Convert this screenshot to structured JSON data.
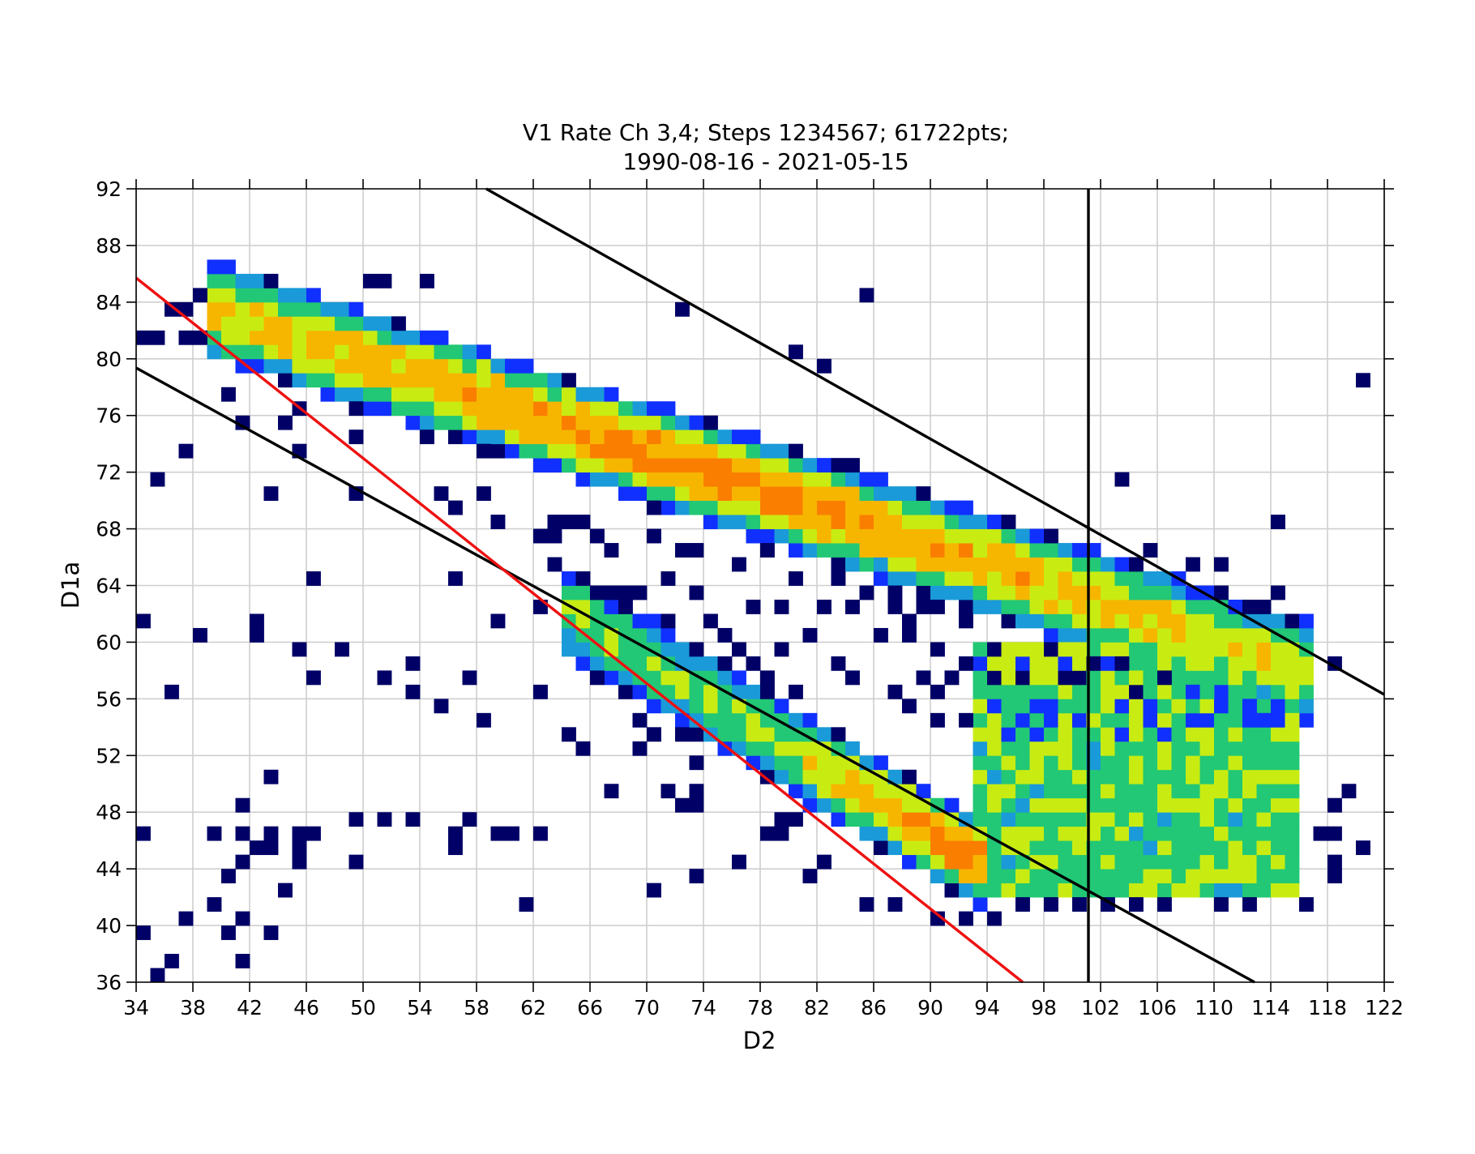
{
  "chart_data": {
    "type": "heatmap",
    "title_lines": [
      "V1 Rate Ch 3,4; Steps 1234567; 61722pts;",
      "1990-08-16 - 2021-05-15"
    ],
    "xlabel": "D2",
    "ylabel": "D1a",
    "xlim": [
      34,
      122
    ],
    "ylim": [
      36,
      92
    ],
    "x_ticks": [
      "34",
      "38",
      "42",
      "46",
      "50",
      "54",
      "58",
      "62",
      "66",
      "70",
      "74",
      "78",
      "82",
      "86",
      "90",
      "94",
      "98",
      "102",
      "106",
      "110",
      "114",
      "118",
      "122"
    ],
    "y_ticks": [
      "36",
      "40",
      "44",
      "48",
      "52",
      "56",
      "60",
      "64",
      "68",
      "72",
      "76",
      "80",
      "84",
      "88",
      "92"
    ],
    "grid": true,
    "colormap": "jet",
    "colormap_stops": [
      "#000066",
      "#1030ff",
      "#1a9ad8",
      "#22c875",
      "#c8ec12",
      "#f6b600",
      "#fa7e00"
    ],
    "bin_width": 1,
    "upper_band": {
      "start": [
        39,
        83.5
      ],
      "end": [
        116,
        58
      ],
      "half_width": 2.6,
      "x_range": [
        39,
        116
      ],
      "peak_along": 0.45,
      "peak_level": 6,
      "base_level": 4
    },
    "lower_band": {
      "start": [
        64,
        62
      ],
      "end": [
        92,
        45
      ],
      "half_width": 2.2,
      "x_range": [
        64,
        93
      ],
      "peak_along": 1.0,
      "peak_level": 6,
      "base_level": 3.5
    },
    "fill_region": {
      "x_range": [
        93,
        116
      ],
      "y_range": [
        42,
        60
      ],
      "level": 3.2
    },
    "scatter_outliers": [
      [
        34,
        81
      ],
      [
        35,
        81
      ],
      [
        37,
        81
      ],
      [
        38,
        81
      ],
      [
        36,
        83
      ],
      [
        37,
        83
      ],
      [
        38,
        84
      ],
      [
        39,
        84
      ],
      [
        41,
        84
      ],
      [
        50,
        85
      ],
      [
        51,
        85
      ],
      [
        54,
        85
      ],
      [
        41,
        79
      ],
      [
        43,
        79
      ],
      [
        45,
        78
      ],
      [
        47,
        78
      ],
      [
        48,
        78
      ],
      [
        49,
        78
      ],
      [
        50,
        77
      ],
      [
        52,
        77
      ],
      [
        40,
        77
      ],
      [
        45,
        76
      ],
      [
        49,
        76
      ],
      [
        53,
        76
      ],
      [
        57,
        76
      ],
      [
        59,
        76
      ],
      [
        61,
        77
      ],
      [
        63,
        77
      ],
      [
        66,
        77
      ],
      [
        41,
        75
      ],
      [
        44,
        75
      ],
      [
        62,
        75
      ],
      [
        49,
        74
      ],
      [
        54,
        74
      ],
      [
        57,
        74
      ],
      [
        63,
        74
      ],
      [
        37,
        73
      ],
      [
        45,
        73
      ],
      [
        58,
        73
      ],
      [
        59,
        73
      ],
      [
        60,
        73
      ],
      [
        35,
        71
      ],
      [
        43,
        70
      ],
      [
        49,
        70
      ],
      [
        55,
        70
      ],
      [
        58,
        70
      ],
      [
        67,
        72
      ],
      [
        69,
        70
      ],
      [
        56,
        69
      ],
      [
        59,
        68
      ],
      [
        63,
        68
      ],
      [
        64,
        68
      ],
      [
        65,
        68
      ],
      [
        62,
        67
      ],
      [
        63,
        67
      ],
      [
        66,
        67
      ],
      [
        70,
        67
      ],
      [
        67,
        66
      ],
      [
        72,
        66
      ],
      [
        73,
        66
      ],
      [
        46,
        64
      ],
      [
        56,
        64
      ],
      [
        63,
        65
      ],
      [
        71,
        64
      ],
      [
        65,
        63
      ],
      [
        67,
        63
      ],
      [
        68,
        63
      ],
      [
        69,
        63
      ],
      [
        73,
        63
      ],
      [
        62,
        62
      ],
      [
        34,
        61
      ],
      [
        42,
        61
      ],
      [
        59,
        61
      ],
      [
        38,
        60
      ],
      [
        42,
        60
      ],
      [
        45,
        59
      ],
      [
        48,
        59
      ],
      [
        46,
        57
      ],
      [
        51,
        57
      ],
      [
        53,
        58
      ],
      [
        57,
        57
      ],
      [
        36,
        56
      ],
      [
        53,
        56
      ],
      [
        55,
        55
      ],
      [
        62,
        56
      ],
      [
        66,
        57
      ],
      [
        58,
        54
      ],
      [
        64,
        53
      ],
      [
        65,
        52
      ],
      [
        69,
        52
      ],
      [
        70,
        53
      ],
      [
        69,
        54
      ],
      [
        72,
        53
      ],
      [
        73,
        51
      ],
      [
        73,
        49
      ],
      [
        73,
        48
      ],
      [
        71,
        49
      ],
      [
        72,
        48
      ],
      [
        67,
        49
      ],
      [
        43,
        50
      ],
      [
        41,
        48
      ],
      [
        34,
        46
      ],
      [
        39,
        46
      ],
      [
        41,
        46
      ],
      [
        43,
        46
      ],
      [
        45,
        46
      ],
      [
        46,
        46
      ],
      [
        49,
        47
      ],
      [
        51,
        47
      ],
      [
        53,
        47
      ],
      [
        56,
        46
      ],
      [
        57,
        47
      ],
      [
        56,
        45
      ],
      [
        59,
        46
      ],
      [
        60,
        46
      ],
      [
        62,
        46
      ],
      [
        41,
        44
      ],
      [
        42,
        45
      ],
      [
        43,
        45
      ],
      [
        45,
        45
      ],
      [
        45,
        44
      ],
      [
        49,
        44
      ],
      [
        40,
        43
      ],
      [
        44,
        42
      ],
      [
        39,
        41
      ],
      [
        37,
        40
      ],
      [
        41,
        40
      ],
      [
        34,
        39
      ],
      [
        40,
        39
      ],
      [
        43,
        39
      ],
      [
        36,
        37
      ],
      [
        41,
        37
      ],
      [
        35,
        36
      ],
      [
        61,
        41
      ],
      [
        70,
        42
      ],
      [
        73,
        43
      ],
      [
        76,
        44
      ],
      [
        78,
        46
      ],
      [
        79,
        46
      ],
      [
        79,
        47
      ],
      [
        80,
        47
      ],
      [
        81,
        43
      ],
      [
        82,
        44
      ],
      [
        85,
        84
      ],
      [
        72,
        83
      ],
      [
        80,
        80
      ],
      [
        82,
        79
      ],
      [
        120,
        78
      ],
      [
        103,
        71
      ],
      [
        114,
        68
      ],
      [
        105,
        66
      ],
      [
        108,
        65
      ],
      [
        110,
        65
      ],
      [
        114,
        63
      ],
      [
        118,
        58
      ],
      [
        119,
        49
      ],
      [
        118,
        48
      ],
      [
        120,
        45
      ],
      [
        118,
        44
      ],
      [
        118,
        43
      ],
      [
        117,
        46
      ],
      [
        118,
        46
      ],
      [
        85,
        41
      ],
      [
        87,
        41
      ],
      [
        90,
        40
      ],
      [
        92,
        40
      ],
      [
        94,
        40
      ],
      [
        96,
        41
      ],
      [
        98,
        41
      ],
      [
        100,
        41
      ],
      [
        102,
        41
      ],
      [
        104,
        41
      ],
      [
        106,
        41
      ],
      [
        110,
        41
      ],
      [
        112,
        41
      ],
      [
        116,
        41
      ],
      [
        85,
        63
      ],
      [
        86,
        64
      ],
      [
        87,
        63
      ],
      [
        84,
        62
      ],
      [
        86,
        60
      ],
      [
        88,
        60
      ],
      [
        90,
        59
      ],
      [
        92,
        58
      ],
      [
        83,
        58
      ],
      [
        84,
        57
      ],
      [
        87,
        56
      ],
      [
        90,
        56
      ],
      [
        75,
        60
      ],
      [
        76,
        59
      ],
      [
        79,
        59
      ],
      [
        81,
        60
      ],
      [
        77,
        58
      ],
      [
        78,
        57
      ],
      [
        80,
        56
      ],
      [
        76,
        55
      ],
      [
        74,
        56
      ],
      [
        73,
        57
      ],
      [
        72,
        58
      ],
      [
        70,
        59
      ],
      [
        69,
        61
      ],
      [
        71,
        61
      ],
      [
        74,
        61
      ],
      [
        77,
        62
      ],
      [
        79,
        62
      ],
      [
        82,
        62
      ],
      [
        76,
        65
      ],
      [
        78,
        66
      ],
      [
        80,
        67
      ],
      [
        82,
        66
      ],
      [
        84,
        65
      ],
      [
        80,
        64
      ],
      [
        83,
        64
      ],
      [
        87,
        66
      ],
      [
        88,
        67
      ],
      [
        89,
        65
      ],
      [
        90,
        64
      ],
      [
        92,
        65
      ],
      [
        93,
        63
      ],
      [
        95,
        62
      ],
      [
        96,
        61
      ],
      [
        98,
        61
      ],
      [
        99,
        60
      ],
      [
        97,
        59
      ],
      [
        95,
        58
      ],
      [
        99,
        57
      ],
      [
        100,
        58
      ],
      [
        101,
        59
      ],
      [
        103,
        59
      ],
      [
        92,
        61
      ],
      [
        90,
        62
      ],
      [
        91,
        63
      ],
      [
        93,
        64
      ],
      [
        92,
        66
      ],
      [
        94,
        67
      ],
      [
        95,
        68
      ],
      [
        96,
        66
      ],
      [
        97,
        65
      ],
      [
        98,
        64
      ],
      [
        96,
        63
      ],
      [
        94,
        62
      ],
      [
        98,
        62
      ],
      [
        100,
        62
      ],
      [
        101,
        61
      ],
      [
        99,
        63
      ],
      [
        100,
        64
      ],
      [
        89,
        62
      ],
      [
        88,
        61
      ],
      [
        87,
        62
      ],
      [
        75,
        68
      ],
      [
        77,
        68
      ],
      [
        79,
        69
      ],
      [
        81,
        69
      ],
      [
        83,
        68
      ],
      [
        85,
        69
      ],
      [
        87,
        69
      ],
      [
        89,
        68
      ],
      [
        76,
        71
      ],
      [
        78,
        71
      ],
      [
        80,
        70
      ],
      [
        82,
        70
      ],
      [
        84,
        71
      ],
      [
        86,
        70
      ],
      [
        74,
        72
      ],
      [
        76,
        72
      ],
      [
        78,
        73
      ],
      [
        80,
        72
      ],
      [
        82,
        72
      ],
      [
        84,
        72
      ],
      [
        71,
        73
      ],
      [
        72,
        72
      ],
      [
        74,
        74
      ],
      [
        70,
        71
      ],
      [
        70,
        69
      ],
      [
        71,
        70
      ],
      [
        88,
        55
      ],
      [
        90,
        54
      ],
      [
        92,
        54
      ],
      [
        94,
        55
      ],
      [
        96,
        55
      ],
      [
        89,
        57
      ],
      [
        91,
        57
      ],
      [
        93,
        56
      ],
      [
        95,
        56
      ],
      [
        97,
        56
      ],
      [
        98,
        57
      ],
      [
        100,
        56
      ]
    ]
  }
}
